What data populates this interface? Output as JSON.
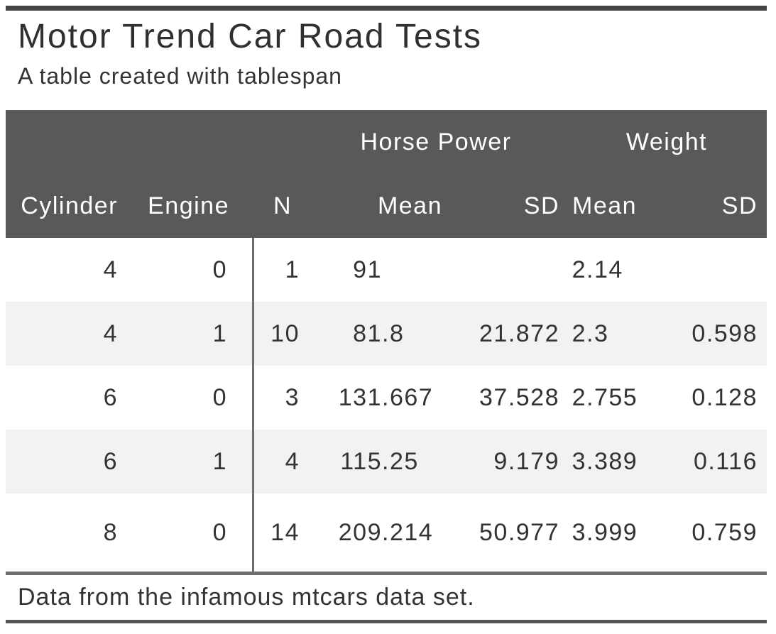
{
  "chart_data": {
    "type": "table",
    "title": "Motor Trend Car Road Tests",
    "subtitle": "A table created with tablespan",
    "source_note": "Data from the infamous mtcars data set.",
    "spanners": [
      {
        "label": "Horse Power",
        "columns": [
          "Mean",
          "SD"
        ]
      },
      {
        "label": "Weight",
        "columns": [
          "Mean",
          "SD"
        ]
      }
    ],
    "columns": [
      "Cylinder",
      "Engine",
      "N",
      "Mean",
      "SD",
      "Mean",
      "SD"
    ],
    "rows": [
      {
        "cylinder": "4",
        "engine": "0",
        "n": "1",
        "hp_mean": "91",
        "hp_sd": "",
        "wt_mean": "2.14",
        "wt_sd": ""
      },
      {
        "cylinder": "4",
        "engine": "1",
        "n": "10",
        "hp_mean": "81.8",
        "hp_sd": "21.872",
        "wt_mean": "2.3",
        "wt_sd": "0.598"
      },
      {
        "cylinder": "6",
        "engine": "0",
        "n": "3",
        "hp_mean": "131.667",
        "hp_sd": "37.528",
        "wt_mean": "2.755",
        "wt_sd": "0.128"
      },
      {
        "cylinder": "6",
        "engine": "1",
        "n": "4",
        "hp_mean": "115.25",
        "hp_sd": "9.179",
        "wt_mean": "3.389",
        "wt_sd": "0.116"
      },
      {
        "cylinder": "8",
        "engine": "0",
        "n": "14",
        "hp_mean": "209.214",
        "hp_sd": "50.977",
        "wt_mean": "3.999",
        "wt_sd": "0.759"
      }
    ]
  },
  "colors": {
    "header_bg": "#595959",
    "stripe_bg": "#f2f2f2",
    "top_bar": "#444444",
    "rule_gray": "#6e6e6e",
    "bottom_bar": "#555555",
    "text": "#333333",
    "header_text": "#ffffff"
  }
}
